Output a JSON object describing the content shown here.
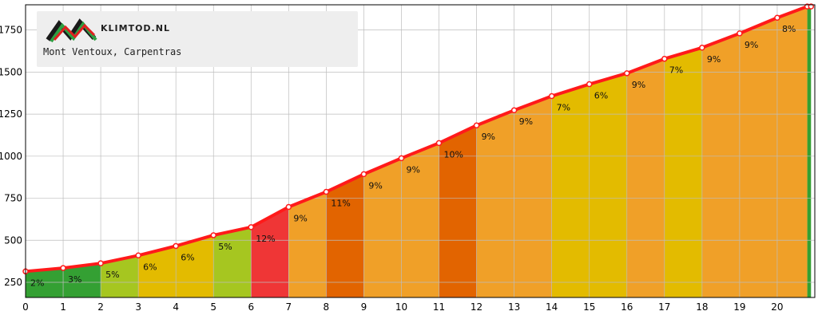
{
  "brand": {
    "name": "KLIMTOD.NL",
    "logo_icon": "zigzag-logo-icon",
    "logo_colors": [
      "#1a1a1a",
      "#2ea043",
      "#e02020"
    ]
  },
  "climb_name": "Mont Ventoux, Carpentras",
  "chart_data": {
    "type": "area",
    "title": "",
    "xlabel": "",
    "ylabel": "",
    "xlim": [
      0,
      21
    ],
    "ylim": [
      160,
      1900
    ],
    "x_ticks": [
      0,
      1,
      2,
      3,
      4,
      5,
      6,
      7,
      8,
      9,
      10,
      11,
      12,
      13,
      14,
      15,
      16,
      17,
      18,
      19,
      20
    ],
    "y_ticks": [
      250,
      500,
      750,
      1000,
      1250,
      1500,
      1750
    ],
    "grid": true,
    "line_color": "#ff1a1a",
    "profile": {
      "x": [
        0,
        1,
        2,
        3,
        4,
        5,
        6,
        7,
        8,
        9,
        10,
        11,
        12,
        13,
        14,
        15,
        16,
        17,
        18,
        19,
        20,
        20.8,
        20.9
      ],
      "y": [
        315,
        335,
        363,
        410,
        466,
        530,
        578,
        698,
        788,
        893,
        988,
        1078,
        1183,
        1273,
        1357,
        1428,
        1493,
        1579,
        1645,
        1730,
        1823,
        1890,
        1890
      ]
    },
    "segments": [
      {
        "from": 0,
        "to": 1,
        "grade": "2%",
        "color": "#34a033"
      },
      {
        "from": 1,
        "to": 2,
        "grade": "3%",
        "color": "#34a033"
      },
      {
        "from": 2,
        "to": 3,
        "grade": "5%",
        "color": "#a6c620"
      },
      {
        "from": 3,
        "to": 4,
        "grade": "6%",
        "color": "#e3bb00"
      },
      {
        "from": 4,
        "to": 5,
        "grade": "6%",
        "color": "#e3bb00"
      },
      {
        "from": 5,
        "to": 6,
        "grade": "5%",
        "color": "#a6c620"
      },
      {
        "from": 6,
        "to": 7,
        "grade": "12%",
        "color": "#ef3636"
      },
      {
        "from": 7,
        "to": 8,
        "grade": "9%",
        "color": "#f0a028"
      },
      {
        "from": 8,
        "to": 9,
        "grade": "11%",
        "color": "#e26400"
      },
      {
        "from": 9,
        "to": 10,
        "grade": "9%",
        "color": "#f0a028"
      },
      {
        "from": 10,
        "to": 11,
        "grade": "9%",
        "color": "#f0a028"
      },
      {
        "from": 11,
        "to": 12,
        "grade": "10%",
        "color": "#e26400"
      },
      {
        "from": 12,
        "to": 13,
        "grade": "9%",
        "color": "#f0a028"
      },
      {
        "from": 13,
        "to": 14,
        "grade": "9%",
        "color": "#f0a028"
      },
      {
        "from": 14,
        "to": 15,
        "grade": "7%",
        "color": "#e3bb00"
      },
      {
        "from": 15,
        "to": 16,
        "grade": "6%",
        "color": "#e3bb00"
      },
      {
        "from": 16,
        "to": 17,
        "grade": "9%",
        "color": "#f0a028"
      },
      {
        "from": 17,
        "to": 18,
        "grade": "7%",
        "color": "#e3bb00"
      },
      {
        "from": 18,
        "to": 19,
        "grade": "9%",
        "color": "#f0a028"
      },
      {
        "from": 19,
        "to": 20,
        "grade": "9%",
        "color": "#f0a028"
      },
      {
        "from": 20,
        "to": 20.8,
        "grade": "8%",
        "color": "#f0a028"
      },
      {
        "from": 20.8,
        "to": 20.9,
        "grade": "",
        "color": "#34a033"
      }
    ]
  }
}
